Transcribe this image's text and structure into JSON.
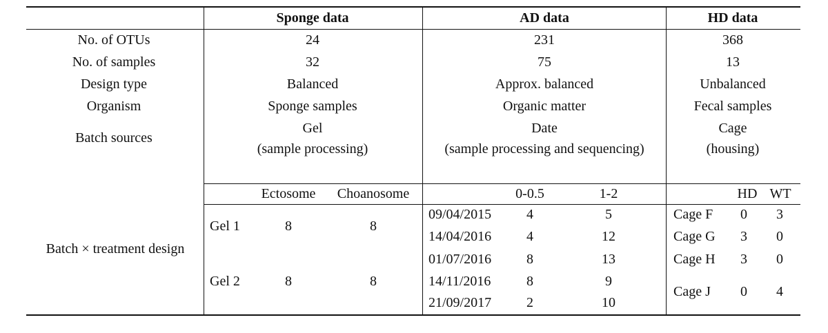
{
  "headers": {
    "sponge": "Sponge data",
    "ad": "AD data",
    "hd": "HD data"
  },
  "rows": {
    "otus": {
      "label": "No. of OTUs",
      "sponge": "24",
      "ad": "231",
      "hd": "368"
    },
    "samples": {
      "label": "No. of samples",
      "sponge": "32",
      "ad": "75",
      "hd": "13"
    },
    "design": {
      "label": "Design type",
      "sponge": "Balanced",
      "ad": "Approx. balanced",
      "hd": "Unbalanced"
    },
    "organism": {
      "label": "Organism",
      "sponge": "Sponge samples",
      "ad": "Organic matter",
      "hd": "Fecal samples"
    },
    "batch": {
      "label": "Batch sources",
      "sponge": [
        "Gel",
        "(sample processing)"
      ],
      "ad": [
        "Date",
        "(sample processing and sequencing)"
      ],
      "hd": [
        "Cage",
        "(housing)"
      ]
    }
  },
  "design_label": "Batch × treatment design",
  "sponge_design": {
    "columns": [
      "Ectosome",
      "Choanosome"
    ],
    "rows": [
      {
        "batch": "Gel 1",
        "values": [
          "8",
          "8"
        ]
      },
      {
        "batch": "Gel 2",
        "values": [
          "8",
          "8"
        ]
      }
    ]
  },
  "ad_design": {
    "columns": [
      "0-0.5",
      "1-2"
    ],
    "rows": [
      {
        "batch": "09/04/2015",
        "values": [
          "4",
          "5"
        ]
      },
      {
        "batch": "14/04/2016",
        "values": [
          "4",
          "12"
        ]
      },
      {
        "batch": "01/07/2016",
        "values": [
          "8",
          "13"
        ]
      },
      {
        "batch": "14/11/2016",
        "values": [
          "8",
          "9"
        ]
      },
      {
        "batch": "21/09/2017",
        "values": [
          "2",
          "10"
        ]
      }
    ]
  },
  "hd_design": {
    "columns": [
      "HD",
      "WT"
    ],
    "rows": [
      {
        "batch": "Cage F",
        "values": [
          "0",
          "3"
        ]
      },
      {
        "batch": "Cage G",
        "values": [
          "3",
          "0"
        ]
      },
      {
        "batch": "Cage H",
        "values": [
          "3",
          "0"
        ]
      },
      {
        "batch": "Cage J",
        "values": [
          "0",
          "4"
        ]
      }
    ]
  }
}
